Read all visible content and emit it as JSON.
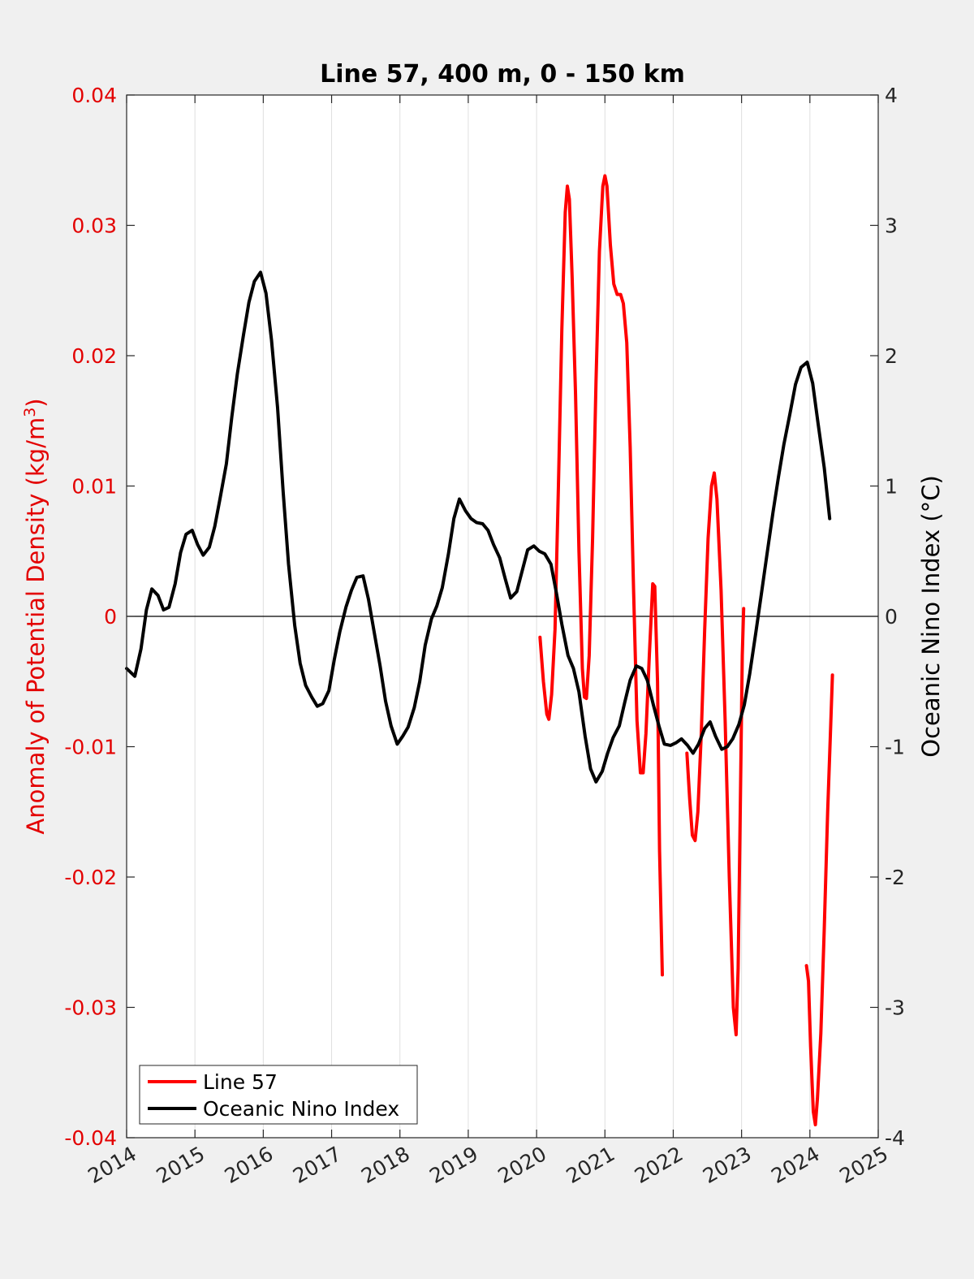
{
  "chart_data": {
    "type": "line",
    "title": "Line 57, 400 m, 0 - 150 km",
    "ylabel_left": "Anomaly of Potential Density (kg/m",
    "ylabel_left_sup": "3",
    "ylabel_left_close": ")",
    "ylabel_right": "Oceanic Nino Index (°C)",
    "xlim": [
      2014,
      2025
    ],
    "ylim_left": [
      -0.04,
      0.04
    ],
    "ylim_right": [
      -4,
      4
    ],
    "x_ticks": [
      "2014",
      "2015",
      "2016",
      "2017",
      "2018",
      "2019",
      "2020",
      "2021",
      "2022",
      "2023",
      "2024",
      "2025"
    ],
    "y_left_ticks": [
      "0.04",
      "0.03",
      "0.02",
      "0.01",
      "0",
      "-0.01",
      "-0.02",
      "-0.03",
      "-0.04"
    ],
    "y_right_ticks": [
      "4",
      "3",
      "2",
      "1",
      "0",
      "-1",
      "-2",
      "-3",
      "-4"
    ],
    "grid_x": true,
    "zero_line": true,
    "legend_position": "bottom-left",
    "series": [
      {
        "name": "Line 57",
        "axis": "left",
        "color": "#ff0000",
        "segments": [
          [
            [
              2020.05,
              -0.0016
            ],
            [
              2020.1,
              -0.005
            ],
            [
              2020.15,
              -0.0075
            ],
            [
              2020.18,
              -0.0079
            ],
            [
              2020.22,
              -0.006
            ],
            [
              2020.27,
              -0.001
            ],
            [
              2020.32,
              0.01
            ],
            [
              2020.37,
              0.022
            ],
            [
              2020.42,
              0.031
            ],
            [
              2020.45,
              0.033
            ],
            [
              2020.48,
              0.032
            ],
            [
              2020.52,
              0.026
            ],
            [
              2020.57,
              0.017
            ],
            [
              2020.62,
              0.005
            ],
            [
              2020.67,
              -0.004
            ],
            [
              2020.7,
              -0.0062
            ],
            [
              2020.73,
              -0.0063
            ],
            [
              2020.77,
              -0.003
            ],
            [
              2020.82,
              0.006
            ],
            [
              2020.87,
              0.018
            ],
            [
              2020.92,
              0.028
            ],
            [
              2020.97,
              0.033
            ],
            [
              2021.0,
              0.0338
            ],
            [
              2021.03,
              0.033
            ],
            [
              2021.08,
              0.0285
            ],
            [
              2021.13,
              0.0255
            ],
            [
              2021.18,
              0.0247
            ],
            [
              2021.23,
              0.0247
            ],
            [
              2021.27,
              0.024
            ],
            [
              2021.32,
              0.021
            ],
            [
              2021.37,
              0.013
            ],
            [
              2021.42,
              0.002
            ],
            [
              2021.47,
              -0.008
            ],
            [
              2021.52,
              -0.012
            ],
            [
              2021.56,
              -0.012
            ],
            [
              2021.6,
              -0.009
            ],
            [
              2021.65,
              -0.003
            ],
            [
              2021.7,
              0.0025
            ],
            [
              2021.73,
              0.0023
            ],
            [
              2021.77,
              -0.005
            ],
            [
              2021.8,
              -0.018
            ],
            [
              2021.84,
              -0.0275
            ]
          ],
          [
            [
              2022.2,
              -0.0105
            ],
            [
              2022.24,
              -0.014
            ],
            [
              2022.28,
              -0.0168
            ],
            [
              2022.32,
              -0.0172
            ],
            [
              2022.36,
              -0.015
            ],
            [
              2022.41,
              -0.009
            ],
            [
              2022.46,
              -0.001
            ],
            [
              2022.51,
              0.006
            ],
            [
              2022.56,
              0.01
            ],
            [
              2022.6,
              0.011
            ],
            [
              2022.64,
              0.009
            ],
            [
              2022.7,
              0.002
            ],
            [
              2022.76,
              -0.008
            ],
            [
              2022.82,
              -0.02
            ],
            [
              2022.88,
              -0.03
            ],
            [
              2022.92,
              -0.0321
            ],
            [
              2022.95,
              -0.027
            ],
            [
              2022.98,
              -0.015
            ],
            [
              2023.01,
              -0.003
            ],
            [
              2023.03,
              0.0006
            ]
          ],
          [
            [
              2023.95,
              -0.0268
            ],
            [
              2023.98,
              -0.028
            ],
            [
              2024.01,
              -0.033
            ],
            [
              2024.05,
              -0.038
            ],
            [
              2024.08,
              -0.039
            ],
            [
              2024.11,
              -0.037
            ],
            [
              2024.16,
              -0.032
            ],
            [
              2024.21,
              -0.024
            ],
            [
              2024.26,
              -0.015
            ],
            [
              2024.3,
              -0.009
            ],
            [
              2024.33,
              -0.0045
            ]
          ]
        ]
      },
      {
        "name": "Oceanic Nino Index",
        "axis": "right",
        "color": "#000000",
        "segments": [
          [
            [
              2014.0,
              -0.4
            ],
            [
              2014.04,
              -0.42
            ],
            [
              2014.12,
              -0.46
            ],
            [
              2014.21,
              -0.25
            ],
            [
              2014.29,
              0.05
            ],
            [
              2014.37,
              0.21
            ],
            [
              2014.46,
              0.16
            ],
            [
              2014.54,
              0.05
            ],
            [
              2014.62,
              0.07
            ],
            [
              2014.71,
              0.25
            ],
            [
              2014.79,
              0.49
            ],
            [
              2014.87,
              0.63
            ],
            [
              2014.96,
              0.66
            ],
            [
              2015.04,
              0.55
            ],
            [
              2015.12,
              0.47
            ],
            [
              2015.21,
              0.53
            ],
            [
              2015.29,
              0.69
            ],
            [
              2015.37,
              0.91
            ],
            [
              2015.46,
              1.17
            ],
            [
              2015.54,
              1.53
            ],
            [
              2015.62,
              1.86
            ],
            [
              2015.71,
              2.16
            ],
            [
              2015.79,
              2.41
            ],
            [
              2015.87,
              2.57
            ],
            [
              2015.96,
              2.64
            ],
            [
              2016.04,
              2.48
            ],
            [
              2016.12,
              2.12
            ],
            [
              2016.21,
              1.6
            ],
            [
              2016.29,
              0.96
            ],
            [
              2016.37,
              0.4
            ],
            [
              2016.46,
              -0.07
            ],
            [
              2016.54,
              -0.36
            ],
            [
              2016.62,
              -0.53
            ],
            [
              2016.71,
              -0.62
            ],
            [
              2016.79,
              -0.69
            ],
            [
              2016.87,
              -0.67
            ],
            [
              2016.96,
              -0.57
            ],
            [
              2017.04,
              -0.33
            ],
            [
              2017.12,
              -0.12
            ],
            [
              2017.21,
              0.07
            ],
            [
              2017.29,
              0.2
            ],
            [
              2017.37,
              0.3
            ],
            [
              2017.46,
              0.31
            ],
            [
              2017.54,
              0.13
            ],
            [
              2017.62,
              -0.11
            ],
            [
              2017.71,
              -0.38
            ],
            [
              2017.79,
              -0.65
            ],
            [
              2017.87,
              -0.84
            ],
            [
              2017.96,
              -0.98
            ],
            [
              2018.04,
              -0.92
            ],
            [
              2018.12,
              -0.85
            ],
            [
              2018.21,
              -0.7
            ],
            [
              2018.29,
              -0.5
            ],
            [
              2018.37,
              -0.22
            ],
            [
              2018.46,
              -0.02
            ],
            [
              2018.54,
              0.08
            ],
            [
              2018.62,
              0.22
            ],
            [
              2018.71,
              0.48
            ],
            [
              2018.79,
              0.75
            ],
            [
              2018.87,
              0.9
            ],
            [
              2018.96,
              0.81
            ],
            [
              2019.04,
              0.75
            ],
            [
              2019.12,
              0.72
            ],
            [
              2019.21,
              0.71
            ],
            [
              2019.29,
              0.66
            ],
            [
              2019.37,
              0.55
            ],
            [
              2019.46,
              0.45
            ],
            [
              2019.54,
              0.29
            ],
            [
              2019.62,
              0.14
            ],
            [
              2019.71,
              0.19
            ],
            [
              2019.79,
              0.35
            ],
            [
              2019.87,
              0.51
            ],
            [
              2019.96,
              0.54
            ],
            [
              2020.04,
              0.5
            ],
            [
              2020.12,
              0.48
            ],
            [
              2020.21,
              0.4
            ],
            [
              2020.29,
              0.18
            ],
            [
              2020.37,
              -0.06
            ],
            [
              2020.46,
              -0.3
            ],
            [
              2020.54,
              -0.4
            ],
            [
              2020.62,
              -0.58
            ],
            [
              2020.71,
              -0.92
            ],
            [
              2020.79,
              -1.17
            ],
            [
              2020.87,
              -1.27
            ],
            [
              2020.96,
              -1.19
            ],
            [
              2021.04,
              -1.05
            ],
            [
              2021.12,
              -0.93
            ],
            [
              2021.21,
              -0.84
            ],
            [
              2021.29,
              -0.66
            ],
            [
              2021.37,
              -0.49
            ],
            [
              2021.46,
              -0.38
            ],
            [
              2021.54,
              -0.4
            ],
            [
              2021.62,
              -0.49
            ],
            [
              2021.71,
              -0.68
            ],
            [
              2021.79,
              -0.84
            ],
            [
              2021.87,
              -0.98
            ],
            [
              2021.96,
              -0.99
            ],
            [
              2022.04,
              -0.97
            ],
            [
              2022.12,
              -0.94
            ],
            [
              2022.21,
              -0.99
            ],
            [
              2022.29,
              -1.05
            ],
            [
              2022.37,
              -0.98
            ],
            [
              2022.46,
              -0.86
            ],
            [
              2022.54,
              -0.81
            ],
            [
              2022.62,
              -0.92
            ],
            [
              2022.71,
              -1.02
            ],
            [
              2022.79,
              -1.0
            ],
            [
              2022.87,
              -0.94
            ],
            [
              2022.96,
              -0.83
            ],
            [
              2023.04,
              -0.68
            ],
            [
              2023.12,
              -0.44
            ],
            [
              2023.21,
              -0.12
            ],
            [
              2023.29,
              0.17
            ],
            [
              2023.37,
              0.47
            ],
            [
              2023.46,
              0.8
            ],
            [
              2023.54,
              1.07
            ],
            [
              2023.62,
              1.32
            ],
            [
              2023.71,
              1.56
            ],
            [
              2023.79,
              1.78
            ],
            [
              2023.87,
              1.91
            ],
            [
              2023.96,
              1.95
            ],
            [
              2024.04,
              1.79
            ],
            [
              2024.12,
              1.48
            ],
            [
              2024.21,
              1.14
            ],
            [
              2024.29,
              0.75
            ]
          ]
        ]
      }
    ]
  }
}
